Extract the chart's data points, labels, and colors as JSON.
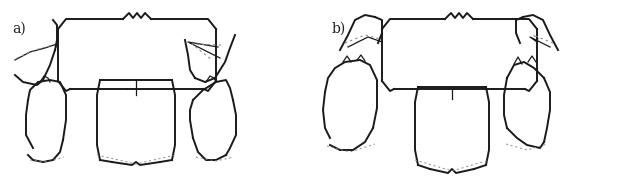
{
  "figure_width": 6.4,
  "figure_height": 1.92,
  "dpi": 100,
  "background_color": "#ffffff",
  "label_a": "a)",
  "label_b": "b)",
  "label_fontsize": 10,
  "label_color": "#222222"
}
